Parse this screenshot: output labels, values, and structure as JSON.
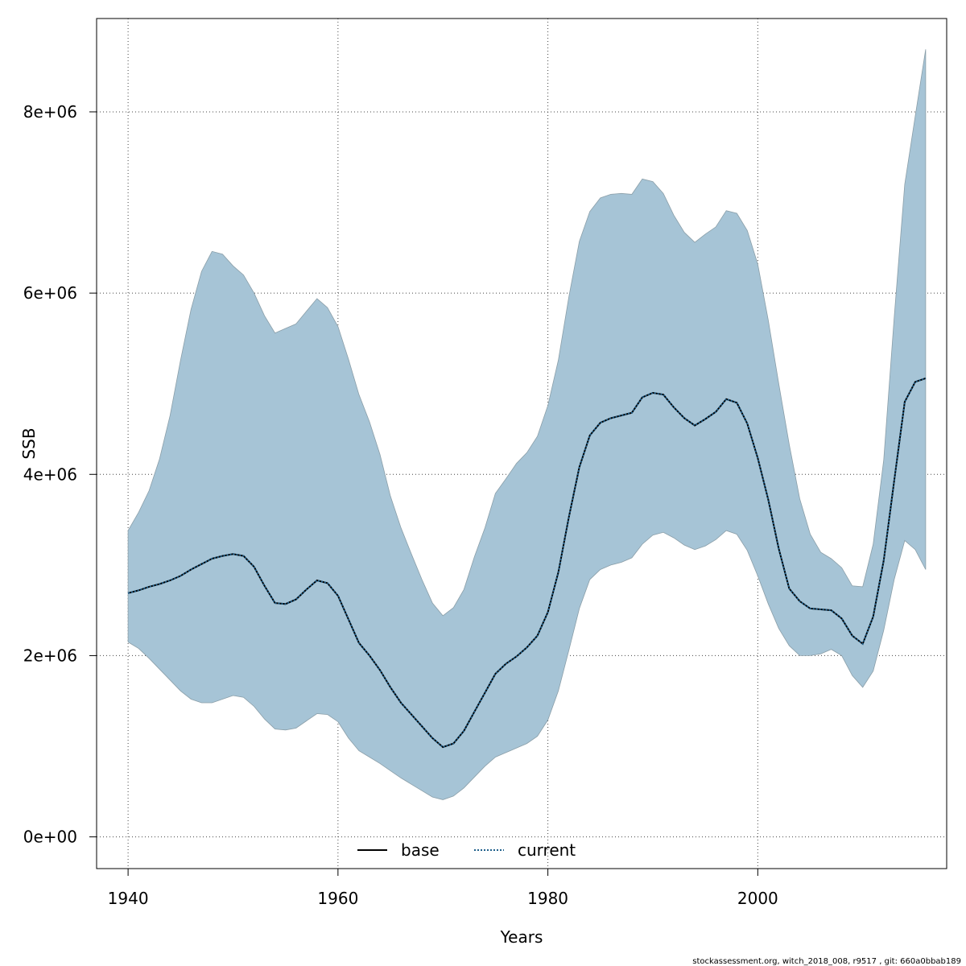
{
  "chart_data": {
    "type": "area",
    "xlabel": "Years",
    "ylabel": "SSB",
    "xlim": [
      1937,
      2018
    ],
    "ylim": [
      -350000,
      9030000
    ],
    "xticks": [
      1940,
      1960,
      1980,
      2000
    ],
    "xtick_labels": [
      "1940",
      "1960",
      "1980",
      "2000"
    ],
    "yticks": [
      0,
      2000000,
      4000000,
      6000000,
      8000000
    ],
    "ytick_labels": [
      "0e+00",
      "2e+06",
      "4e+06",
      "6e+06",
      "8e+06"
    ],
    "grid": true,
    "legend_position": "bottom",
    "legend": [
      {
        "label": "base",
        "style": "solid",
        "color": "#000000"
      },
      {
        "label": "current",
        "style": "dotted",
        "color": "#1f5f8b"
      }
    ],
    "colors": {
      "band": "#a6c4d6",
      "band_edge": "#8a9ea8",
      "base": "#000000",
      "current": "#1f5f8b"
    },
    "x": [
      1940,
      1941,
      1942,
      1943,
      1944,
      1945,
      1946,
      1947,
      1948,
      1949,
      1950,
      1951,
      1952,
      1953,
      1954,
      1955,
      1956,
      1957,
      1958,
      1959,
      1960,
      1961,
      1962,
      1963,
      1964,
      1965,
      1966,
      1967,
      1968,
      1969,
      1970,
      1971,
      1972,
      1973,
      1974,
      1975,
      1976,
      1977,
      1978,
      1979,
      1980,
      1981,
      1982,
      1983,
      1984,
      1985,
      1986,
      1987,
      1988,
      1989,
      1990,
      1991,
      1992,
      1993,
      1994,
      1995,
      1996,
      1997,
      1998,
      1999,
      2000,
      2001,
      2002,
      2003,
      2004,
      2005,
      2006,
      2007,
      2008,
      2009,
      2010,
      2011,
      2012,
      2013,
      2014,
      2015,
      2016
    ],
    "series": [
      {
        "name": "upper",
        "values": [
          3380000,
          3580000,
          3820000,
          4170000,
          4650000,
          5260000,
          5820000,
          6240000,
          6460000,
          6430000,
          6300000,
          6200000,
          6000000,
          5750000,
          5560000,
          5610000,
          5660000,
          5800000,
          5940000,
          5840000,
          5630000,
          5270000,
          4880000,
          4580000,
          4220000,
          3760000,
          3410000,
          3120000,
          2840000,
          2580000,
          2440000,
          2530000,
          2730000,
          3090000,
          3410000,
          3790000,
          3950000,
          4120000,
          4240000,
          4420000,
          4760000,
          5260000,
          5960000,
          6570000,
          6900000,
          7050000,
          7090000,
          7100000,
          7090000,
          7260000,
          7230000,
          7100000,
          6860000,
          6670000,
          6560000,
          6650000,
          6730000,
          6910000,
          6880000,
          6690000,
          6320000,
          5700000,
          5000000,
          4330000,
          3730000,
          3340000,
          3140000,
          3070000,
          2970000,
          2770000,
          2760000,
          3230000,
          4160000,
          5730000,
          7200000,
          7950000,
          8690000
        ]
      },
      {
        "name": "lower",
        "values": [
          2150000,
          2080000,
          1970000,
          1850000,
          1730000,
          1610000,
          1520000,
          1480000,
          1480000,
          1520000,
          1560000,
          1540000,
          1440000,
          1300000,
          1190000,
          1180000,
          1200000,
          1280000,
          1360000,
          1350000,
          1270000,
          1090000,
          950000,
          880000,
          810000,
          730000,
          650000,
          580000,
          510000,
          440000,
          410000,
          450000,
          540000,
          660000,
          780000,
          880000,
          930000,
          980000,
          1030000,
          1110000,
          1290000,
          1610000,
          2060000,
          2520000,
          2840000,
          2950000,
          3000000,
          3030000,
          3080000,
          3230000,
          3330000,
          3360000,
          3300000,
          3220000,
          3170000,
          3210000,
          3280000,
          3380000,
          3340000,
          3160000,
          2880000,
          2570000,
          2300000,
          2110000,
          2000000,
          2000000,
          2020000,
          2070000,
          2000000,
          1780000,
          1650000,
          1830000,
          2280000,
          2840000,
          3270000,
          3170000,
          2950000
        ]
      },
      {
        "name": "current",
        "values": [
          2690000,
          2720000,
          2760000,
          2790000,
          2830000,
          2880000,
          2950000,
          3010000,
          3070000,
          3100000,
          3120000,
          3100000,
          2980000,
          2770000,
          2580000,
          2570000,
          2620000,
          2730000,
          2830000,
          2800000,
          2660000,
          2400000,
          2140000,
          2000000,
          1840000,
          1650000,
          1480000,
          1350000,
          1220000,
          1090000,
          990000,
          1030000,
          1170000,
          1380000,
          1590000,
          1800000,
          1910000,
          1990000,
          2090000,
          2220000,
          2480000,
          2920000,
          3530000,
          4080000,
          4430000,
          4570000,
          4620000,
          4650000,
          4680000,
          4850000,
          4900000,
          4880000,
          4740000,
          4620000,
          4540000,
          4610000,
          4690000,
          4830000,
          4790000,
          4560000,
          4180000,
          3720000,
          3180000,
          2740000,
          2600000,
          2520000,
          2510000,
          2500000,
          2410000,
          2220000,
          2130000,
          2430000,
          3050000,
          3930000,
          4800000,
          5020000,
          5060000
        ]
      }
    ]
  },
  "footer": {
    "text": "stockassessment.org, witch_2018_008, r9517 , git: 660a0bbab189"
  }
}
